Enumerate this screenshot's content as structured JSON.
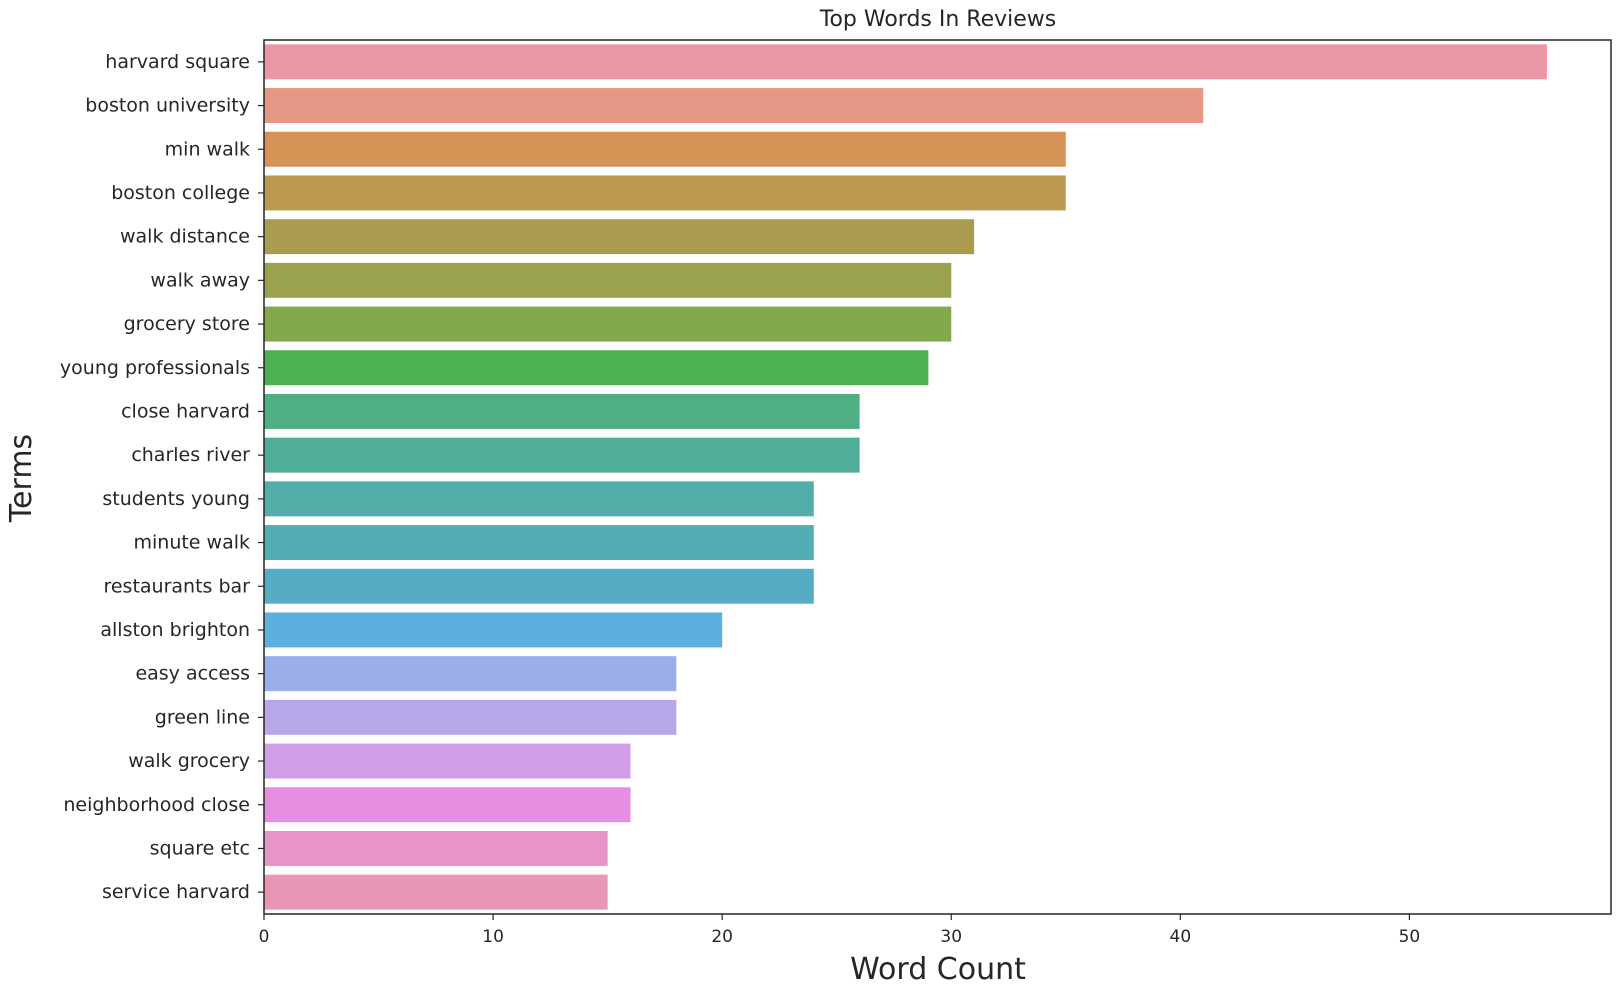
{
  "chart_data": {
    "type": "bar",
    "orientation": "horizontal",
    "title": "Top Words In Reviews",
    "xlabel": "Word Count",
    "ylabel": "Terms",
    "xlim": [
      0,
      58.8
    ],
    "xticks": [
      0,
      10,
      20,
      30,
      40,
      50
    ],
    "grid": false,
    "categories": [
      "harvard square",
      "boston university",
      "min walk",
      "boston college",
      "walk distance",
      "walk away",
      "grocery store",
      "young professionals",
      "close harvard",
      "charles river",
      "students young",
      "minute walk",
      "restaurants bar",
      "allston brighton",
      "easy access",
      "green line",
      "walk grocery",
      "neighborhood close",
      "square etc",
      "service harvard"
    ],
    "values": [
      56,
      41,
      35,
      35,
      31,
      30,
      30,
      29,
      26,
      26,
      24,
      24,
      24,
      20,
      18,
      18,
      16,
      16,
      15,
      15
    ],
    "colors": [
      "#ea96a3",
      "#e69684",
      "#d59355",
      "#bb9a50",
      "#ab9b4e",
      "#9aa24d",
      "#84a84c",
      "#4db052",
      "#50ae85",
      "#51ac98",
      "#53ada8",
      "#55adb4",
      "#57acc5",
      "#5cb0e0",
      "#9aafe9",
      "#b8a7e9",
      "#d29de8",
      "#e68ee1",
      "#e794c8",
      "#e895b6"
    ]
  }
}
